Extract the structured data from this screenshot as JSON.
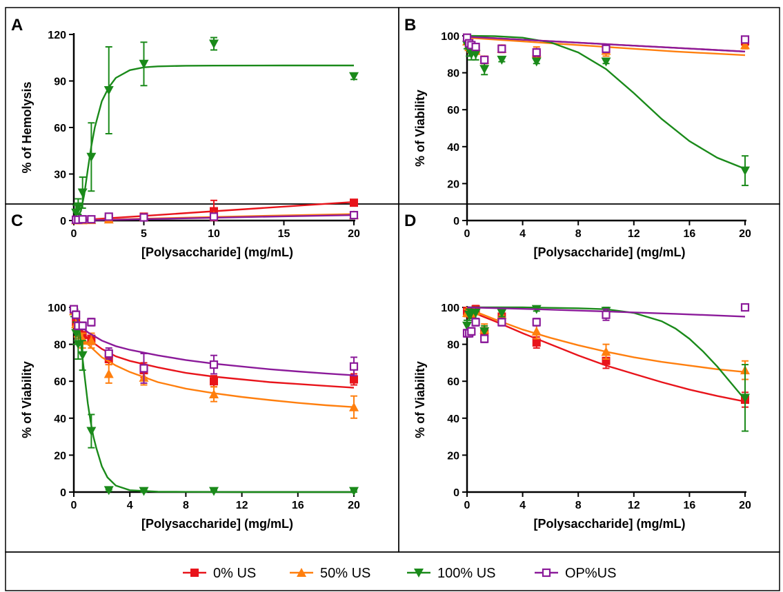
{
  "figure": {
    "legend": {
      "items": [
        {
          "label": "0% US",
          "color": "#e8141b",
          "marker": "square"
        },
        {
          "label": "50% US",
          "color": "#ff7f0e",
          "marker": "triangle-up"
        },
        {
          "label": "100% US",
          "color": "#1a8a1a",
          "marker": "triangle-down"
        },
        {
          "label": "OP%US",
          "color": "#8b1a9a",
          "marker": "open-square"
        }
      ]
    }
  },
  "chart_data": [
    {
      "panel": "A",
      "type": "scatter",
      "xlabel": "[Polysaccharide] (mg/mL)",
      "ylabel": "% of Hemolysis",
      "xlim": [
        0,
        20
      ],
      "ylim": [
        0,
        120
      ],
      "xticks": [
        0,
        5,
        10,
        15,
        20
      ],
      "yticks": [
        0,
        30,
        60,
        90,
        120
      ],
      "series": [
        {
          "name": "0% US",
          "x": [
            0.156,
            0.313,
            0.625,
            1.25,
            2.5,
            5,
            10,
            20
          ],
          "y": [
            0.5,
            0.5,
            0.5,
            0.5,
            1.0,
            2.5,
            6,
            11.5
          ],
          "err": [
            0.5,
            0.5,
            0.5,
            0.5,
            0.8,
            1.2,
            7,
            2
          ],
          "fit_x": [
            0,
            2.5,
            5,
            10,
            15,
            20
          ],
          "fit_y": [
            0,
            1.5,
            3,
            6,
            9,
            12
          ]
        },
        {
          "name": "50% US",
          "x": [
            0.156,
            0.313,
            0.625,
            1.25,
            2.5,
            5,
            10,
            20
          ],
          "y": [
            0.3,
            0.3,
            0.3,
            0.4,
            0.8,
            2,
            3,
            3.5
          ],
          "err": [
            0.3,
            0.3,
            0.3,
            0.3,
            0.5,
            0.8,
            1.5,
            1.5
          ],
          "fit_x": [
            0,
            5,
            10,
            15,
            20
          ],
          "fit_y": [
            0,
            1.2,
            2.3,
            3.3,
            4.2
          ]
        },
        {
          "name": "100% US",
          "x": [
            0.156,
            0.313,
            0.625,
            1.25,
            2.5,
            5,
            10,
            20
          ],
          "y": [
            5,
            9,
            18,
            41,
            84,
            101,
            114,
            93
          ],
          "err": [
            5,
            5,
            10,
            22,
            28,
            14,
            4,
            2
          ],
          "fit_x": [
            0,
            0.25,
            0.5,
            0.75,
            1,
            1.25,
            1.5,
            2,
            2.5,
            3,
            4,
            5,
            6,
            8,
            10,
            15,
            20
          ],
          "fit_y": [
            0,
            2,
            6,
            17,
            33,
            48,
            60,
            77,
            86,
            92,
            97,
            98.8,
            99.4,
            99.8,
            99.9,
            100,
            100
          ]
        },
        {
          "name": "OP%US",
          "x": [
            0.156,
            0.313,
            0.625,
            1.25,
            2.5,
            5,
            10,
            20
          ],
          "y": [
            0.5,
            0.5,
            0.8,
            0.8,
            2.5,
            2,
            2.5,
            3.5
          ],
          "err": [
            0.3,
            0.3,
            0.4,
            0.4,
            0.8,
            0.8,
            1,
            1.2
          ],
          "fit_x": [
            0,
            5,
            10,
            15,
            20
          ],
          "fit_y": [
            0,
            0.9,
            1.8,
            2.7,
            3.5
          ]
        }
      ]
    },
    {
      "panel": "B",
      "type": "scatter",
      "xlabel": "[Polysaccharide] (mg/mL)",
      "ylabel": "% of Viability",
      "xlim": [
        0,
        20
      ],
      "ylim": [
        0,
        100
      ],
      "xticks": [
        0,
        4,
        8,
        12,
        16,
        20
      ],
      "yticks": [
        0,
        20,
        40,
        60,
        80,
        100
      ],
      "series": [
        {
          "name": "0% US",
          "x": [
            0,
            0.156,
            0.313,
            0.625,
            1.25,
            2.5,
            5,
            10,
            20
          ],
          "y": [
            99,
            95,
            93,
            93,
            87,
            93,
            90,
            93,
            97
          ],
          "err": [
            1.5,
            2,
            2,
            2,
            2,
            2,
            2,
            2,
            2
          ],
          "fit_x": [
            0,
            5,
            10,
            15,
            20
          ],
          "fit_y": [
            99.5,
            97.5,
            95.5,
            93.5,
            91.5
          ]
        },
        {
          "name": "50% US",
          "x": [
            0,
            0.156,
            0.313,
            0.625,
            1.25,
            2.5,
            5,
            10,
            20
          ],
          "y": [
            97,
            94,
            93,
            92,
            87,
            93,
            91,
            92,
            95
          ],
          "err": [
            1.5,
            2,
            2,
            2,
            2,
            2,
            3,
            3,
            2
          ],
          "fit_x": [
            0,
            5,
            10,
            15,
            20
          ],
          "fit_y": [
            99,
            96.5,
            94,
            91.5,
            89.5
          ]
        },
        {
          "name": "100% US",
          "x": [
            0,
            0.156,
            0.313,
            0.625,
            1.25,
            2.5,
            5,
            10,
            20
          ],
          "y": [
            95,
            92,
            90,
            90,
            82,
            87,
            86,
            86,
            27
          ],
          "err": [
            2,
            3,
            3,
            3,
            3,
            1,
            1,
            1,
            8
          ],
          "fit_x": [
            0,
            2,
            4,
            6,
            8,
            10,
            12,
            14,
            16,
            18,
            20
          ],
          "fit_y": [
            100,
            99.8,
            99,
            96.5,
            91,
            82,
            69,
            55,
            43,
            34,
            28
          ]
        },
        {
          "name": "OP%US",
          "x": [
            0,
            0.156,
            0.313,
            0.625,
            1.25,
            2.5,
            5,
            10,
            20
          ],
          "y": [
            99,
            96,
            95,
            94,
            87,
            93,
            91,
            93,
            98
          ],
          "err": [
            1,
            1.5,
            1.5,
            1.5,
            1.5,
            1.5,
            2,
            2,
            1.5
          ],
          "fit_x": [
            0,
            5,
            10,
            15,
            20
          ],
          "fit_y": [
            99.5,
            97.5,
            95.5,
            93.5,
            91.5
          ]
        }
      ]
    },
    {
      "panel": "C",
      "type": "scatter",
      "xlabel": "[Polysaccharide] (mg/mL)",
      "ylabel": "% of Viability",
      "xlim": [
        0,
        20
      ],
      "ylim": [
        0,
        100
      ],
      "xticks": [
        0,
        4,
        8,
        12,
        16,
        20
      ],
      "yticks": [
        0,
        20,
        40,
        60,
        80,
        100
      ],
      "series": [
        {
          "name": "0% US",
          "x": [
            0,
            0.156,
            0.313,
            0.625,
            1.25,
            2.5,
            5,
            10,
            20
          ],
          "y": [
            99,
            92,
            88,
            85,
            83,
            72,
            66,
            60,
            61
          ],
          "err": [
            1,
            3,
            3,
            3,
            3,
            3,
            4,
            3,
            3
          ],
          "fit_x": [
            0,
            0.2,
            0.5,
            1,
            2,
            3,
            4,
            6,
            8,
            10,
            12,
            14,
            16,
            18,
            20
          ],
          "fit_y": [
            100,
            92.5,
            87.5,
            83,
            77.5,
            73.5,
            71,
            67.5,
            64.5,
            62.5,
            61,
            59.5,
            58.5,
            57.5,
            56.5
          ]
        },
        {
          "name": "50% US",
          "x": [
            0,
            0.156,
            0.313,
            0.625,
            1.25,
            2.5,
            5,
            10,
            20
          ],
          "y": [
            98,
            91,
            86,
            82,
            82,
            64,
            62,
            53,
            46
          ],
          "err": [
            1.5,
            3,
            3,
            4,
            4,
            5,
            4,
            4,
            6
          ],
          "fit_x": [
            0,
            0.2,
            0.5,
            1,
            2,
            3,
            4,
            6,
            8,
            10,
            12,
            14,
            16,
            18,
            20
          ],
          "fit_y": [
            100,
            91.5,
            85.5,
            80,
            73,
            68.5,
            65,
            59.5,
            56,
            53.5,
            51.5,
            49.8,
            48.3,
            47,
            46
          ]
        },
        {
          "name": "100% US",
          "x": [
            0,
            0.156,
            0.313,
            0.625,
            1.25,
            2.5,
            5,
            10,
            20
          ],
          "y": [
            97,
            86,
            80,
            74,
            33,
            1,
            0.5,
            0.5,
            0.5
          ],
          "err": [
            2,
            6,
            8,
            8,
            9,
            0.5,
            0.5,
            0.5,
            0.5
          ],
          "fit_x": [
            0,
            0.2,
            0.4,
            0.6,
            0.8,
            1,
            1.2,
            1.4,
            1.6,
            2,
            2.4,
            3,
            4,
            6,
            8,
            12,
            16,
            20
          ],
          "fit_y": [
            100,
            96,
            88,
            74,
            61,
            48,
            38,
            30,
            24,
            14,
            8,
            3.5,
            1,
            0.2,
            0.1,
            0,
            0,
            0
          ]
        },
        {
          "name": "OP%US",
          "x": [
            0,
            0.156,
            0.313,
            0.625,
            1.25,
            2.5,
            5,
            10,
            20
          ],
          "y": [
            99,
            96,
            90,
            90,
            92,
            75,
            67,
            69,
            68
          ],
          "err": [
            1,
            2,
            2,
            2,
            2,
            3,
            8,
            5,
            5
          ],
          "fit_x": [
            0,
            0.2,
            0.5,
            1,
            2,
            3,
            4,
            6,
            8,
            10,
            12,
            14,
            16,
            18,
            20
          ],
          "fit_y": [
            100,
            94,
            90,
            86.5,
            82,
            79,
            77,
            74,
            71.5,
            69.5,
            68,
            66.5,
            65.3,
            64.2,
            63.2
          ]
        }
      ]
    },
    {
      "panel": "D",
      "type": "scatter",
      "xlabel": "[Polysaccharide] (mg/mL)",
      "ylabel": "% of Viability",
      "xlim": [
        0,
        20
      ],
      "ylim": [
        0,
        100
      ],
      "xticks": [
        0,
        4,
        8,
        12,
        16,
        20
      ],
      "yticks": [
        0,
        20,
        40,
        60,
        80,
        100
      ],
      "series": [
        {
          "name": "0% US",
          "x": [
            0,
            0.156,
            0.313,
            0.625,
            1.25,
            2.5,
            5,
            10,
            20
          ],
          "y": [
            98,
            97,
            96,
            99,
            86,
            95,
            81,
            71,
            50
          ],
          "err": [
            2,
            2,
            2,
            2,
            3,
            3,
            3,
            4,
            4
          ],
          "fit_x": [
            0,
            1,
            2,
            4,
            6,
            8,
            10,
            12,
            14,
            16,
            18,
            20
          ],
          "fit_y": [
            99,
            95.5,
            92.5,
            86,
            80,
            74,
            68.5,
            64,
            59.5,
            55.5,
            52,
            49
          ]
        },
        {
          "name": "50% US",
          "x": [
            0,
            0.156,
            0.313,
            0.625,
            1.25,
            2.5,
            5,
            10,
            20
          ],
          "y": [
            97,
            98,
            97,
            98,
            88,
            96,
            87,
            76,
            66
          ],
          "err": [
            2,
            2,
            2,
            2,
            3,
            3,
            4,
            4,
            5
          ],
          "fit_x": [
            0,
            1,
            2,
            4,
            6,
            8,
            10,
            12,
            14,
            16,
            18,
            20
          ],
          "fit_y": [
            99,
            96.5,
            93.5,
            88,
            83.5,
            79.5,
            76,
            73,
            70.5,
            68.5,
            66.5,
            65
          ]
        },
        {
          "name": "100% US",
          "x": [
            0,
            0.156,
            0.313,
            0.625,
            1.25,
            2.5,
            5,
            10,
            20
          ],
          "y": [
            90,
            96,
            97,
            97,
            87,
            97,
            99,
            98,
            51
          ],
          "err": [
            3,
            3,
            3,
            3,
            3,
            2,
            1,
            2,
            18
          ],
          "fit_x": [
            0,
            4,
            8,
            10,
            12,
            14,
            15,
            16,
            17,
            18,
            19,
            20
          ],
          "fit_y": [
            100,
            100,
            99.5,
            99,
            97,
            92.5,
            88.5,
            83,
            76,
            68,
            59,
            50
          ]
        },
        {
          "name": "OP%US",
          "x": [
            0,
            0.156,
            0.313,
            0.625,
            1.25,
            2.5,
            5,
            10,
            20
          ],
          "y": [
            86,
            86,
            87,
            92,
            83,
            92,
            92,
            96,
            100
          ],
          "err": [
            2,
            2,
            2,
            2,
            2,
            2,
            2,
            3,
            1
          ],
          "fit_x": [
            0,
            5,
            10,
            15,
            20
          ],
          "fit_y": [
            100,
            99,
            97.8,
            96.5,
            95
          ]
        }
      ]
    }
  ]
}
